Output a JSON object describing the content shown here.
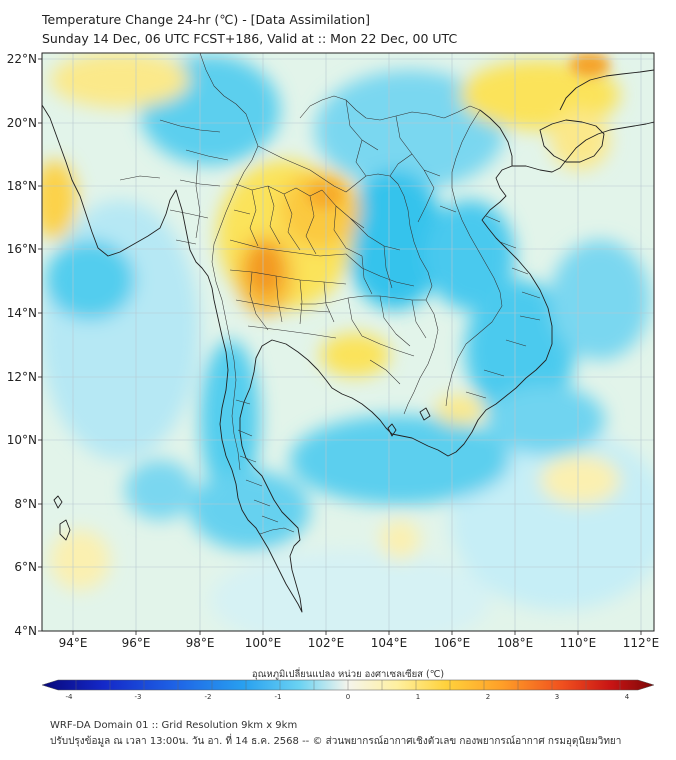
{
  "header": {
    "title_line1": "Temperature Change 24-hr (℃) - [Data Assimilation]",
    "title_line2": "Sunday 14 Dec, 06 UTC FCST+186, Valid at :: Mon 22 Dec, 00 UTC"
  },
  "axes": {
    "lat_ticks": [
      "22°N",
      "20°N",
      "18°N",
      "16°N",
      "14°N",
      "12°N",
      "10°N",
      "8°N",
      "6°N",
      "4°N"
    ],
    "lon_ticks": [
      "94°E",
      "96°E",
      "98°E",
      "100°E",
      "102°E",
      "104°E",
      "106°E",
      "108°E",
      "110°E",
      "112°E"
    ]
  },
  "colorbar": {
    "label": "อุณหภูมิเปลี่ยนแปลง หน่วย องศาเซลเซียส (℃)",
    "ticks": [
      "-4",
      "-3",
      "-2",
      "-1",
      "0",
      "1",
      "2",
      "3",
      "4"
    ],
    "colors": [
      "#08087a",
      "#1428c8",
      "#1e64e6",
      "#28a0f0",
      "#46c8f0",
      "#a0e6f5",
      "#f5f5e6",
      "#fff0a0",
      "#ffdc46",
      "#ffaa28",
      "#f5641e",
      "#d21414",
      "#7a0808"
    ]
  },
  "footer": {
    "line1": "WRF-DA Domain 01 :: Grid Resolution 9km x 9km",
    "line2": "ปรับปรุงข้อมูล ณ เวลา 13:00น. วัน อา. ที่ 14 ธ.ค. 2568 -- © ส่วนพยากรณ์อากาศเชิงตัวเลข กองพยากรณ์อากาศ กรมอุตุนิยมวิทยา"
  },
  "colors": {
    "water": "#d8f4f8",
    "cool": "#52cdee",
    "warm": "#fbe35a",
    "hot": "#f6a326",
    "coast": "#222222",
    "grid": "#b8c8d0"
  }
}
